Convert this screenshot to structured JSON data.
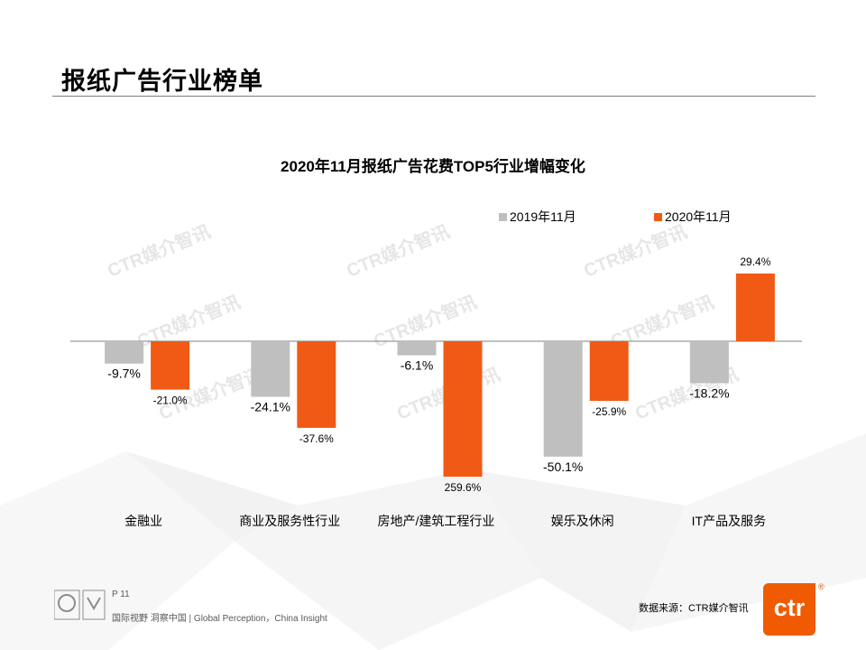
{
  "page": {
    "title": "报纸广告行业榜单",
    "page_number": "P 11",
    "slogan": "国际视野 洞察中国 | Global Perception，China Insight",
    "source": "数据来源：CTR媒介智讯",
    "logo_text": "ctr",
    "reg_mark": "®",
    "watermark": "CTR媒介智讯"
  },
  "colors": {
    "series_2019": "#bfbfbf",
    "series_2020": "#f05a14",
    "axis": "#7f7f7f"
  },
  "chart_data": {
    "type": "bar",
    "title": "2020年11月报纸广告花费TOP5行业增幅变化",
    "categories": [
      "金融业",
      "商业及服务性行业",
      "房地产/建筑工程行业",
      "娱乐及休闲",
      "IT产品及服务"
    ],
    "series": [
      {
        "name": "2019年11月",
        "values": [
          -9.7,
          -24.1,
          -6.1,
          -50.1,
          -18.2
        ],
        "labels": [
          "-9.7%",
          "-24.1%",
          "-6.1%",
          "-50.1%",
          "-18.2%"
        ]
      },
      {
        "name": "2020年11月",
        "values": [
          -21.0,
          -37.6,
          259.6,
          -25.9,
          29.4
        ],
        "labels": [
          "-21.0%",
          "-37.6%",
          "259.6%",
          "-25.9%",
          "29.4%"
        ]
      }
    ],
    "note": "The 259.6% bar is drawn downward in the source image; its height is visually clipped",
    "legend_position": "top-right",
    "xlabel": "",
    "ylabel": "",
    "unit": "%"
  }
}
